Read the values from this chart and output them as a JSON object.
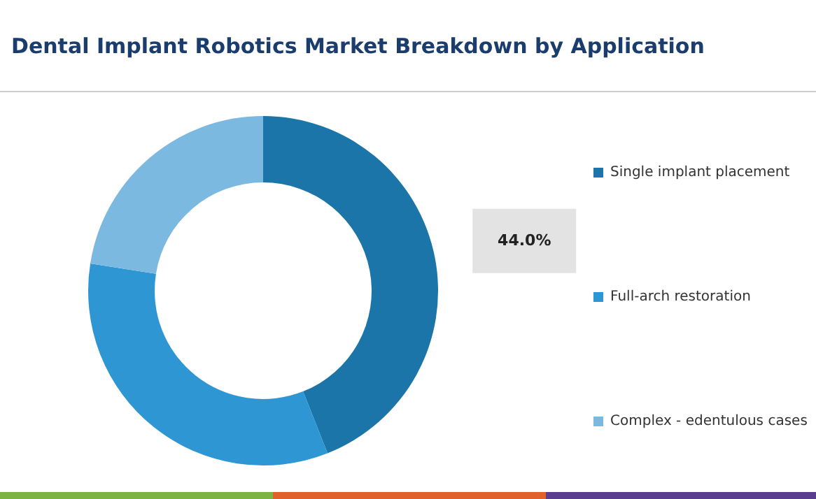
{
  "chart_data": {
    "type": "donut",
    "title": "Dental Implant Robotics Market Breakdown by Application",
    "categories": [
      "Single implant placement",
      "Full-arch restoration",
      "Complex - edentulous cases"
    ],
    "values": [
      44.0,
      33.5,
      22.5
    ],
    "colors": [
      "#1b75a9",
      "#2f96d4",
      "#7cb9e1"
    ],
    "value_labels": [
      "44.0%",
      null,
      null
    ],
    "legend": "right"
  }
}
